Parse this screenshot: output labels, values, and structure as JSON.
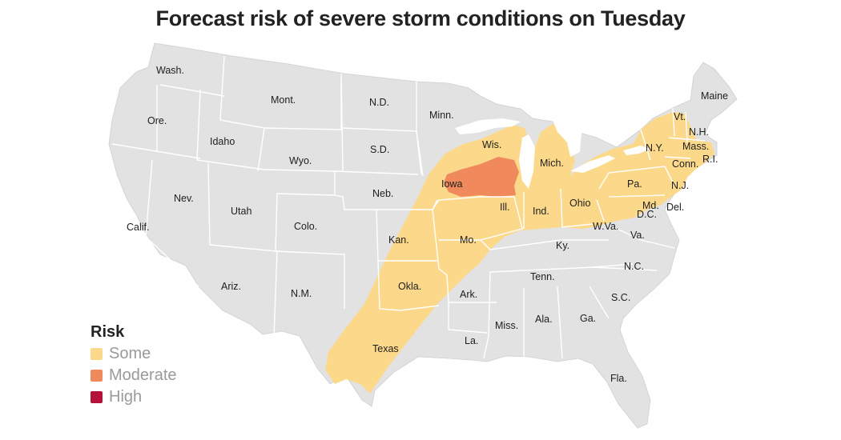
{
  "title": "Forecast risk of severe storm conditions on Tuesday",
  "legend": {
    "title": "Risk",
    "items": [
      {
        "label": "Some",
        "color": "#fcd98a"
      },
      {
        "label": "Moderate",
        "color": "#f08a5d"
      },
      {
        "label": "High",
        "color": "#b5123a"
      }
    ]
  },
  "colors": {
    "land": "#e2e2e2",
    "border": "#ffffff",
    "some": "#fcd98a",
    "moderate": "#f08a5d"
  },
  "states": {
    "wash": "Wash.",
    "ore": "Ore.",
    "idaho": "Idaho",
    "mont": "Mont.",
    "nd": "N.D.",
    "minn": "Minn.",
    "maine": "Maine",
    "vt": "Vt.",
    "nh": "N.H.",
    "mass": "Mass.",
    "ri": "R.I.",
    "conn": "Conn.",
    "ny": "N.Y.",
    "nj": "N.J.",
    "pa": "Pa.",
    "md": "Md.",
    "dc": "D.C.",
    "del": "Del.",
    "wis": "Wis.",
    "mich": "Mich.",
    "sd": "S.D.",
    "wyo": "Wyo.",
    "iowa": "Iowa",
    "neb": "Neb.",
    "ill": "Ill.",
    "ind": "Ind.",
    "ohio": "Ohio",
    "nev": "Nev.",
    "utah": "Utah",
    "colo": "Colo.",
    "calif": "Calif.",
    "kan": "Kan.",
    "mo": "Mo.",
    "wva": "W.Va.",
    "va": "Va.",
    "ky": "Ky.",
    "nc": "N.C.",
    "tenn": "Tenn.",
    "ariz": "Ariz.",
    "nm": "N.M.",
    "okla": "Okla.",
    "ark": "Ark.",
    "sc": "S.C.",
    "miss": "Miss.",
    "ala": "Ala.",
    "ga": "Ga.",
    "texas": "Texas",
    "la": "La.",
    "fla": "Fla."
  }
}
